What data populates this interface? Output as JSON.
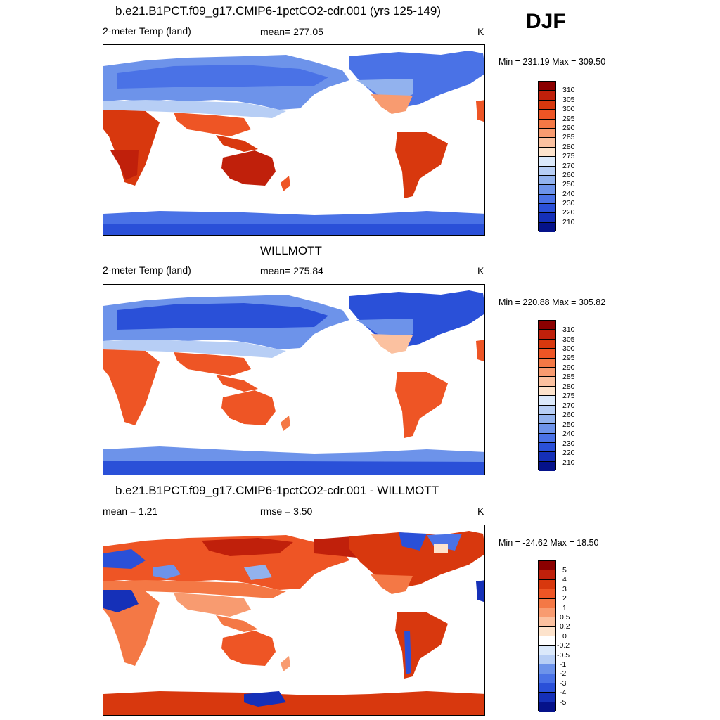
{
  "season": "DJF",
  "units_symbol": "K",
  "panels": [
    {
      "title": "b.e21.B1PCT.f09_g17.CMIP6-1pctCO2-cdr.001 (yrs 125-149)",
      "left_label": "2-meter Temp (land)",
      "center_label": "mean= 277.05",
      "units": "K",
      "minmax": "Min = 231.19 Max = 309.50",
      "levels": [
        "310",
        "305",
        "300",
        "295",
        "290",
        "285",
        "280",
        "275",
        "270",
        "260",
        "250",
        "240",
        "230",
        "220",
        "210"
      ]
    },
    {
      "title": "WILLMOTT",
      "left_label": "2-meter Temp (land)",
      "center_label": "mean= 275.84",
      "units": "K",
      "minmax": "Min = 220.88 Max = 305.82",
      "levels": [
        "310",
        "305",
        "300",
        "295",
        "290",
        "285",
        "280",
        "275",
        "270",
        "260",
        "250",
        "240",
        "230",
        "220",
        "210"
      ]
    },
    {
      "title": "b.e21.B1PCT.f09_g17.CMIP6-1pctCO2-cdr.001 - WILLMOTT",
      "left_label": "mean =   1.21",
      "center_label": "rmse =   3.50",
      "units": "K",
      "minmax": "Min = -24.62 Max =  18.50",
      "levels": [
        "5",
        "4",
        "3",
        "2",
        "1",
        "0.5",
        "0.2",
        "0",
        "-0.2",
        "-0.5",
        "-1",
        "-2",
        "-3",
        "-4",
        "-5"
      ]
    }
  ],
  "colors": {
    "abs_scale": [
      "#8b0000",
      "#c0200b",
      "#d8380e",
      "#ee5525",
      "#f47845",
      "#f89b70",
      "#fbc1a0",
      "#fde3cc",
      "#ffffff",
      "#dbe9fb",
      "#b7cef5",
      "#92b2ee",
      "#6d93ea",
      "#4a72e6",
      "#2a50d8",
      "#1530b8",
      "#05128a"
    ],
    "diff_scale": [
      "#8b0000",
      "#c0200b",
      "#d8380e",
      "#ee5525",
      "#f47845",
      "#f89b70",
      "#fbc1a0",
      "#fde3cc",
      "#ffffff",
      "#ffffff",
      "#dbe9fb",
      "#b7cef5",
      "#92b2ee",
      "#6d93ea",
      "#4a72e6",
      "#2a50d8",
      "#1530b8",
      "#05128a"
    ]
  }
}
